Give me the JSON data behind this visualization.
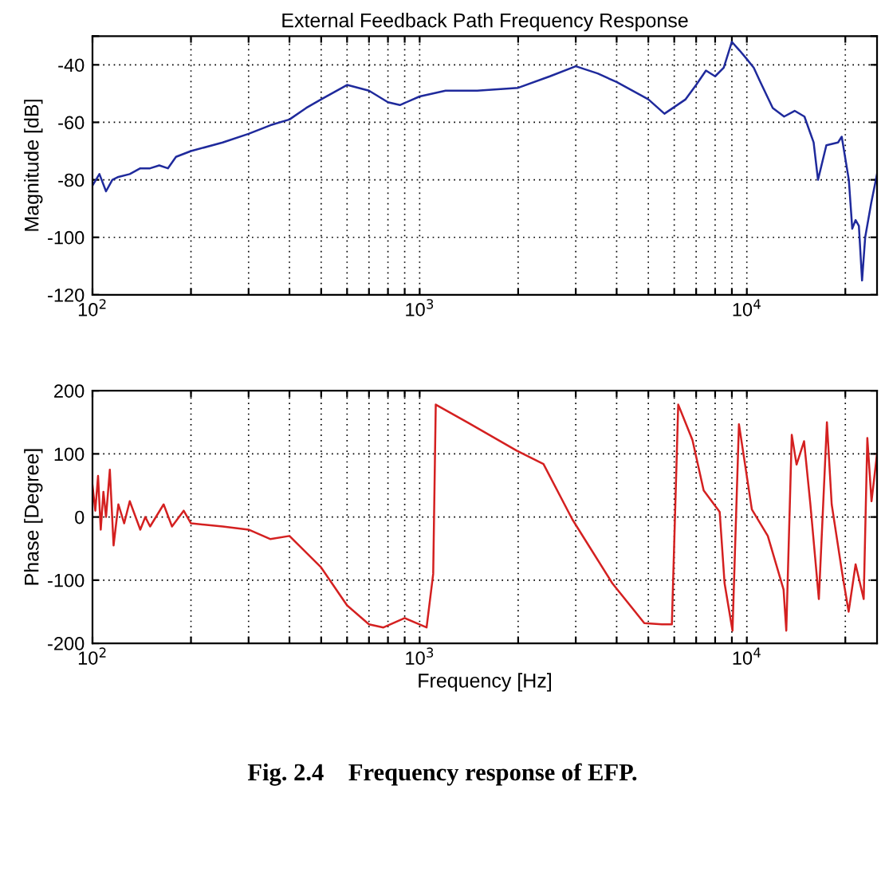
{
  "chart_data": [
    {
      "type": "line",
      "title": "External Feedback Path Frequency Response",
      "ylabel": "Magnitude [dB]",
      "log": "x",
      "grid": true,
      "line_style": "solid",
      "marker": "none",
      "x": [
        100,
        105,
        110,
        115,
        120,
        130,
        140,
        150,
        160,
        170,
        180,
        200,
        250,
        300,
        350,
        400,
        450,
        500,
        600,
        700,
        800,
        870,
        1000,
        1200,
        1500,
        2000,
        2500,
        3000,
        3500,
        4000,
        5000,
        5600,
        6500,
        7000,
        7500,
        8000,
        8500,
        9000,
        9500,
        10000,
        10500,
        11000,
        12000,
        13000,
        14000,
        15000,
        16000,
        16500,
        17500,
        19000,
        19500,
        20500,
        21000,
        21500,
        22000,
        22500,
        23000,
        24000,
        25000
      ],
      "series": [
        {
          "color": "#1f2a9c",
          "values": [
            -82,
            -78,
            -84,
            -80,
            -79,
            -78,
            -76,
            -76,
            -75,
            -76,
            -72,
            -70,
            -67,
            -64,
            -61,
            -59,
            -55,
            -52,
            -47,
            -49,
            -53,
            -54,
            -51,
            -49,
            -49,
            -48,
            -44,
            -40.5,
            -43,
            -46,
            -52,
            -57,
            -52,
            -47,
            -42,
            -44,
            -41,
            -32,
            -35,
            -38,
            -41,
            -46,
            -55,
            -58,
            -56,
            -58,
            -67,
            -80,
            -68,
            -67,
            -65,
            -80,
            -97,
            -94,
            -96,
            -115,
            -100,
            -88,
            -78
          ]
        }
      ],
      "xlim": [
        100,
        25000
      ],
      "ylim": [
        -120,
        -30
      ],
      "xticks": [
        {
          "value": 100,
          "label": "10$^{2}$"
        },
        {
          "value": 200,
          "label": null
        },
        {
          "value": 300,
          "label": null
        },
        {
          "value": 400,
          "label": null
        },
        {
          "value": 500,
          "label": null
        },
        {
          "value": 600,
          "label": null
        },
        {
          "value": 700,
          "label": null
        },
        {
          "value": 800,
          "label": null
        },
        {
          "value": 900,
          "label": null
        },
        {
          "value": 1000,
          "label": "10$^{3}$"
        },
        {
          "value": 2000,
          "label": null
        },
        {
          "value": 3000,
          "label": null
        },
        {
          "value": 4000,
          "label": null
        },
        {
          "value": 5000,
          "label": null
        },
        {
          "value": 6000,
          "label": null
        },
        {
          "value": 7000,
          "label": null
        },
        {
          "value": 8000,
          "label": null
        },
        {
          "value": 9000,
          "label": null
        },
        {
          "value": 10000,
          "label": "10$^{4}$"
        },
        {
          "value": 20000,
          "label": null
        }
      ],
      "yticks": [
        -120,
        -100,
        -80,
        -60,
        -40,
        {
          "value": -30,
          "label": null
        }
      ]
    },
    {
      "type": "line",
      "xlabel": "Frequency [Hz]",
      "ylabel": "Phase [Degree]",
      "log": "x",
      "grid": true,
      "line_style": "solid",
      "marker": "none",
      "x": [
        100,
        102,
        104,
        106,
        108,
        110,
        113,
        116,
        120,
        125,
        130,
        140,
        145,
        150,
        165,
        175,
        190,
        200,
        250,
        300,
        350,
        400,
        500,
        600,
        700,
        775,
        900,
        1050,
        1100,
        1120,
        1410,
        1980,
        2390,
        2930,
        3880,
        4860,
        5500,
        5900,
        6170,
        6820,
        7380,
        8260,
        8550,
        9040,
        9460,
        10360,
        11590,
        12950,
        13200,
        13720,
        14190,
        14960,
        15640,
        16600,
        17570,
        18170,
        19580,
        20470,
        21500,
        22760,
        23350,
        24050,
        25000
      ],
      "series": [
        {
          "color": "#d42020",
          "values": [
            50,
            10,
            65,
            -20,
            40,
            0,
            75,
            -45,
            20,
            -10,
            25,
            -20,
            0,
            -15,
            20,
            -15,
            10,
            -10,
            -15,
            -20,
            -35,
            -30,
            -80,
            -140,
            -170,
            -175,
            -160,
            -175,
            -90,
            178,
            149,
            105,
            84,
            -4,
            -105,
            -168,
            -170,
            -170,
            178,
            122,
            42,
            8,
            -105,
            -180,
            147,
            12,
            -30,
            -115,
            -180,
            130,
            83,
            120,
            20,
            -130,
            150,
            20,
            -90,
            -150,
            -75,
            -130,
            125,
            25,
            100
          ]
        }
      ],
      "xlim": [
        100,
        25000
      ],
      "ylim": [
        -200,
        200
      ],
      "xticks": [
        {
          "value": 100,
          "label": "10$^{2}$"
        },
        {
          "value": 200,
          "label": null
        },
        {
          "value": 300,
          "label": null
        },
        {
          "value": 400,
          "label": null
        },
        {
          "value": 500,
          "label": null
        },
        {
          "value": 600,
          "label": null
        },
        {
          "value": 700,
          "label": null
        },
        {
          "value": 800,
          "label": null
        },
        {
          "value": 900,
          "label": null
        },
        {
          "value": 1000,
          "label": "10$^{3}$"
        },
        {
          "value": 2000,
          "label": null
        },
        {
          "value": 3000,
          "label": null
        },
        {
          "value": 4000,
          "label": null
        },
        {
          "value": 5000,
          "label": null
        },
        {
          "value": 6000,
          "label": null
        },
        {
          "value": 7000,
          "label": null
        },
        {
          "value": 8000,
          "label": null
        },
        {
          "value": 9000,
          "label": null
        },
        {
          "value": 10000,
          "label": "10$^{4}$"
        },
        {
          "value": 20000,
          "label": null
        }
      ],
      "yticks": [
        -200,
        -100,
        0,
        100,
        200
      ],
      "annotations": [
        "Fig. 2.4    Frequency response of EFP."
      ]
    }
  ]
}
